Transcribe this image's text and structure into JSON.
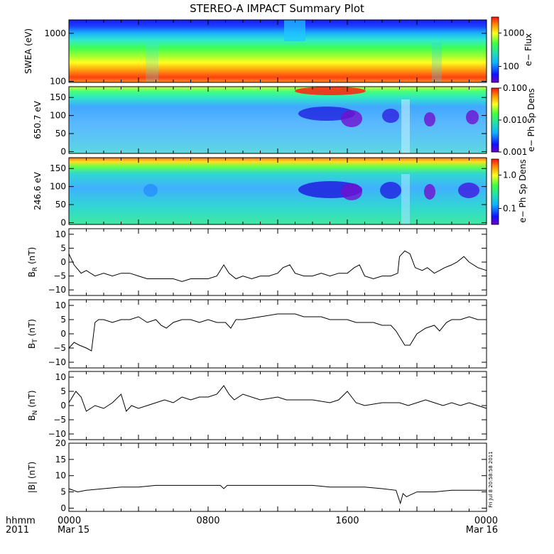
{
  "title": "STEREO-A IMPACT Summary Plot",
  "stamp": "Fri Jul  8 20:58:58 2011",
  "colors": {
    "line": "#000000",
    "axis": "#000000",
    "background": "#ffffff"
  },
  "x_axis": {
    "row1_label": "hhmm",
    "row2_label": "2011",
    "tick_labels": [
      "0000",
      "0800",
      "1600",
      "0000"
    ],
    "date_labels": [
      "Mar 15",
      "",
      "",
      "Mar 16"
    ],
    "tick_hours": [
      0,
      8,
      16,
      24
    ],
    "range_hours": [
      0,
      24
    ]
  },
  "chart_data": [
    {
      "type": "heatmap",
      "ylabel": "SWEA (eV)",
      "y_scale": "log",
      "ylim": [
        95,
        1900
      ],
      "y_ticks": [
        100,
        1000
      ],
      "y_tick_labels": [
        "100",
        "1000"
      ],
      "colorbar": {
        "label": "e− Flux",
        "scale": "log",
        "ticks": [
          100,
          1000
        ],
        "tick_labels": [
          "100",
          "1000"
        ]
      }
    },
    {
      "type": "heatmap",
      "ylabel": "650.7 eV",
      "ylim": [
        -5,
        180
      ],
      "y_ticks": [
        0,
        50,
        100,
        150
      ],
      "y_tick_labels": [
        "0",
        "50",
        "100",
        "150"
      ],
      "colorbar": {
        "label": "e− Ph Sp Dens",
        "scale": "log",
        "range": [
          0.001,
          0.1
        ],
        "ticks": [
          0.001,
          0.01,
          0.1
        ],
        "tick_labels": [
          "0.001",
          "0.010",
          "0.100"
        ]
      }
    },
    {
      "type": "heatmap",
      "ylabel": "246.6 eV",
      "ylim": [
        -5,
        180
      ],
      "y_ticks": [
        0,
        50,
        100,
        150
      ],
      "y_tick_labels": [
        "0",
        "50",
        "100",
        "150"
      ],
      "colorbar": {
        "label": "e− Ph Sp Dens",
        "scale": "log",
        "ticks": [
          0.1,
          1.0
        ],
        "tick_labels": [
          "0.1",
          "1.0"
        ]
      }
    },
    {
      "type": "line",
      "ylabel_main": "B",
      "ylabel_sub": "R",
      "ylabel_unit": " (nT)",
      "ylim": [
        -12,
        12
      ],
      "y_ticks": [
        -10,
        -5,
        0,
        5,
        10
      ],
      "y_tick_labels": [
        "−10",
        "−5",
        "0",
        "5",
        "10"
      ],
      "x": [
        0,
        0.3,
        0.7,
        1,
        1.5,
        2,
        2.5,
        3,
        3.5,
        4,
        4.5,
        5,
        5.5,
        6,
        6.5,
        7,
        7.5,
        8,
        8.5,
        8.9,
        9.2,
        9.6,
        10,
        10.5,
        11,
        11.5,
        12,
        12.3,
        12.7,
        13,
        13.5,
        14,
        14.5,
        15,
        15.5,
        16,
        16.4,
        16.7,
        17,
        17.5,
        18,
        18.5,
        18.9,
        19,
        19.3,
        19.6,
        19.9,
        20.3,
        20.6,
        21,
        21.3,
        21.6,
        22,
        22.3,
        22.7,
        23,
        23.5,
        24
      ],
      "y": [
        3,
        -1,
        -4,
        -3,
        -5,
        -4,
        -5,
        -4,
        -4,
        -5,
        -6,
        -6,
        -6,
        -6,
        -7,
        -6,
        -6,
        -6,
        -5,
        -1,
        -4,
        -6,
        -5,
        -6,
        -5,
        -5,
        -4,
        -2,
        -1,
        -4,
        -5,
        -5,
        -4,
        -5,
        -4,
        -4,
        -2,
        -1,
        -5,
        -6,
        -5,
        -5,
        -4,
        2,
        4,
        3,
        -2,
        -3,
        -2,
        -4,
        -3,
        -2,
        -1,
        0,
        2,
        0,
        -2,
        -3
      ]
    },
    {
      "type": "line",
      "ylabel_main": "B",
      "ylabel_sub": "T",
      "ylabel_unit": " (nT)",
      "ylim": [
        -12,
        12
      ],
      "y_ticks": [
        -10,
        -5,
        0,
        5,
        10
      ],
      "y_tick_labels": [
        "−10",
        "−5",
        "0",
        "5",
        "10"
      ],
      "x": [
        0,
        0.3,
        0.6,
        1,
        1.3,
        1.5,
        1.7,
        2,
        2.5,
        3,
        3.5,
        4,
        4.5,
        5,
        5.3,
        5.6,
        6,
        6.5,
        7,
        7.5,
        8,
        8.5,
        9,
        9.3,
        9.6,
        10,
        11,
        12,
        12.5,
        13,
        13.5,
        14,
        14.5,
        15,
        15.5,
        16,
        16.5,
        17,
        17.5,
        18,
        18.5,
        18.8,
        19,
        19.3,
        19.6,
        20,
        20.5,
        21,
        21.3,
        21.7,
        22,
        22.5,
        23,
        23.5,
        24
      ],
      "y": [
        -5,
        -3,
        -4,
        -5,
        -6,
        4,
        5,
        5,
        4,
        5,
        5,
        6,
        4,
        5,
        3,
        2,
        4,
        5,
        5,
        4,
        5,
        4,
        4,
        2,
        5,
        5,
        6,
        7,
        7,
        7,
        6,
        6,
        6,
        5,
        5,
        5,
        4,
        4,
        4,
        3,
        3,
        1,
        -1,
        -4,
        -4,
        0,
        2,
        3,
        1,
        4,
        5,
        5,
        6,
        5,
        5
      ]
    },
    {
      "type": "line",
      "ylabel_main": "B",
      "ylabel_sub": "N",
      "ylabel_unit": " (nT)",
      "ylim": [
        -12,
        12
      ],
      "y_ticks": [
        -10,
        -5,
        0,
        5,
        10
      ],
      "y_tick_labels": [
        "−10",
        "−5",
        "0",
        "5",
        "10"
      ],
      "x": [
        0,
        0.4,
        0.7,
        1,
        1.5,
        2,
        2.5,
        3,
        3.3,
        3.6,
        4,
        4.5,
        5,
        5.5,
        6,
        6.5,
        7,
        7.5,
        8,
        8.5,
        8.9,
        9.2,
        9.5,
        10,
        11,
        12,
        12.5,
        13,
        14,
        15,
        15.5,
        16,
        16.5,
        17,
        18,
        19,
        19.5,
        20,
        20.5,
        21,
        21.5,
        22,
        22.5,
        23,
        23.5,
        24
      ],
      "y": [
        1,
        5,
        3,
        -2,
        0,
        -1,
        1,
        4,
        -2,
        0,
        -1,
        0,
        1,
        2,
        1,
        3,
        2,
        3,
        3,
        4,
        7,
        4,
        2,
        4,
        2,
        3,
        2,
        2,
        2,
        1,
        2,
        5,
        1,
        0,
        1,
        1,
        0,
        1,
        2,
        1,
        0,
        1,
        0,
        1,
        0,
        -1
      ]
    },
    {
      "type": "line",
      "ylabel": "|B| (nT)",
      "ylim": [
        -1,
        20
      ],
      "y_ticks": [
        0,
        5,
        10,
        15,
        20
      ],
      "y_tick_labels": [
        "0",
        "5",
        "10",
        "15",
        "20"
      ],
      "x": [
        0,
        0.5,
        1,
        2,
        3,
        4,
        5,
        6,
        7,
        8,
        8.7,
        8.9,
        9.1,
        10,
        11,
        12,
        13,
        14,
        15,
        16,
        17,
        18,
        18.8,
        19.05,
        19.2,
        19.4,
        19.6,
        20,
        21,
        22,
        23,
        24
      ],
      "y": [
        6,
        5,
        5.5,
        6,
        6.5,
        6.5,
        7,
        7,
        7,
        7,
        7,
        6,
        7,
        7,
        7,
        7,
        7,
        7,
        6.5,
        6.5,
        6.5,
        6,
        5.5,
        1.5,
        4.5,
        3.5,
        4,
        5,
        5,
        5.5,
        5.5,
        5.5
      ]
    }
  ]
}
